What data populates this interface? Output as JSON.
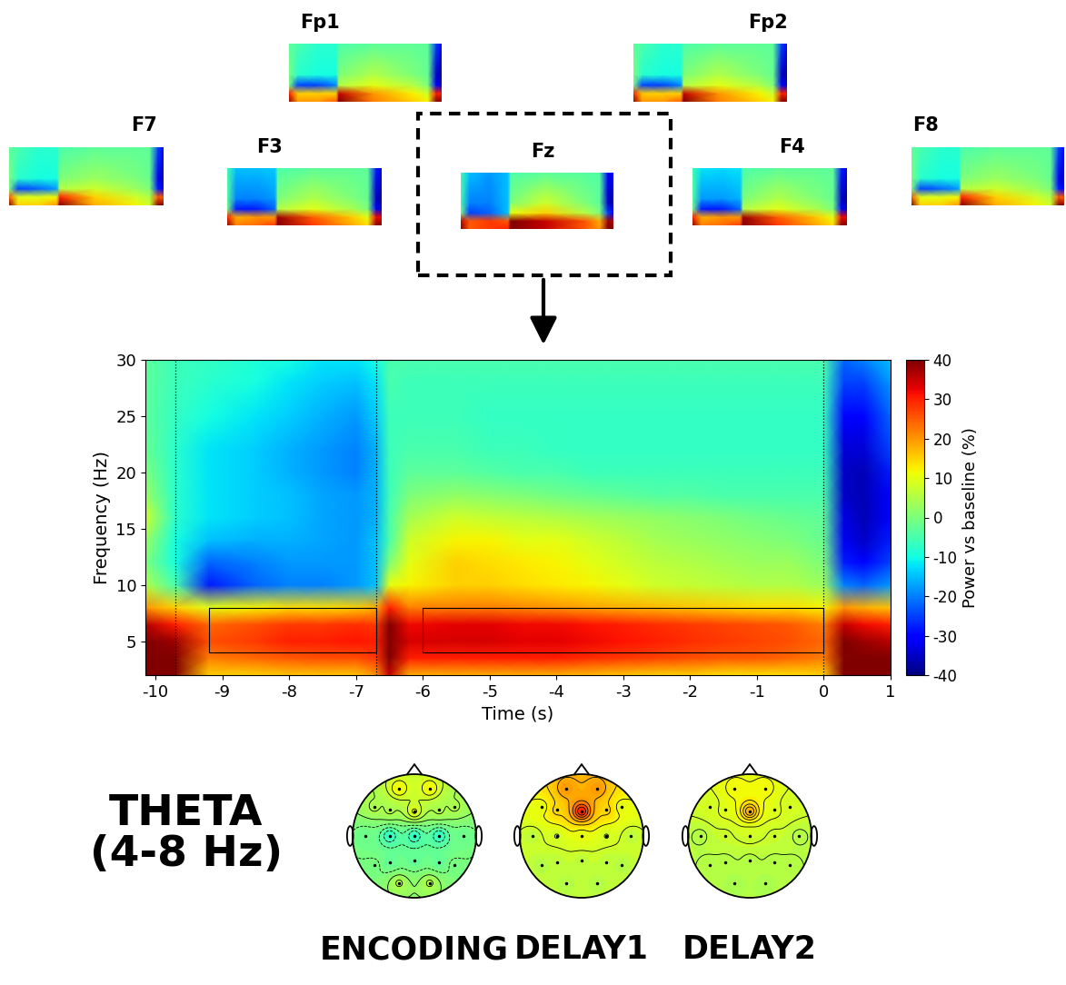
{
  "chart_data": {
    "type": "heatmap",
    "x_label": "Time (s)",
    "y_label": "Frequency (Hz)",
    "xlim": [
      -10.15,
      1.0
    ],
    "ylim": [
      2,
      30
    ],
    "xticks": [
      -10,
      -9,
      -8,
      -7,
      -6,
      -5,
      -4,
      -3,
      -2,
      -1,
      0,
      1
    ],
    "yticks": [
      5,
      10,
      15,
      20,
      25,
      30
    ],
    "events": [
      -9.7,
      -6.7,
      0
    ],
    "windows": [
      {
        "x": [
          -9.2,
          -6.7
        ],
        "y": [
          4,
          8
        ]
      },
      {
        "x": [
          -6.0,
          0.0
        ],
        "y": [
          4,
          8
        ]
      }
    ],
    "colorbar": {
      "label": "Power vs baseline (%)",
      "range": [
        -40,
        40
      ],
      "ticks": [
        -40,
        -30,
        -20,
        -10,
        0,
        10,
        20,
        30,
        40
      ]
    },
    "x": [
      -10.15,
      -9.7,
      -9.2,
      -8.5,
      -8,
      -7.5,
      -7,
      -6.7,
      -6.5,
      -6.2,
      -5.5,
      -5,
      -4.5,
      -4,
      -3.5,
      -3,
      -2.5,
      -2,
      -1.5,
      -1,
      -0.5,
      0,
      0.3,
      0.6,
      1.0
    ],
    "y": [
      2,
      3.5,
      5,
      6.5,
      8,
      10,
      12,
      14,
      16,
      18,
      20,
      22,
      25,
      28,
      30
    ],
    "cells": [
      [
        40,
        40,
        15,
        15,
        16,
        16,
        16,
        20,
        35,
        18,
        18,
        18,
        18,
        18,
        17,
        16,
        15,
        15,
        14,
        14,
        14,
        15,
        40,
        40,
        40
      ],
      [
        40,
        40,
        22,
        24,
        25,
        26,
        26,
        28,
        40,
        30,
        30,
        30,
        30,
        30,
        29,
        28,
        27,
        26,
        25,
        25,
        24,
        22,
        40,
        40,
        40
      ],
      [
        40,
        38,
        26,
        28,
        30,
        30,
        31,
        30,
        40,
        34,
        34,
        34,
        33,
        33,
        32,
        31,
        30,
        29,
        28,
        27,
        26,
        24,
        40,
        38,
        36
      ],
      [
        36,
        30,
        24,
        26,
        28,
        28,
        29,
        28,
        40,
        32,
        33,
        33,
        32,
        32,
        31,
        30,
        29,
        28,
        27,
        26,
        25,
        22,
        35,
        32,
        30
      ],
      [
        20,
        15,
        10,
        12,
        14,
        14,
        15,
        18,
        30,
        22,
        22,
        22,
        21,
        20,
        19,
        18,
        17,
        16,
        15,
        14,
        14,
        12,
        20,
        18,
        16
      ],
      [
        5,
        -5,
        -28,
        -22,
        -20,
        -20,
        -18,
        -15,
        10,
        12,
        15,
        15,
        14,
        13,
        12,
        10,
        8,
        7,
        6,
        5,
        5,
        3,
        -20,
        -22,
        -18
      ],
      [
        0,
        -10,
        -22,
        -20,
        -18,
        -18,
        -18,
        -15,
        0,
        10,
        15,
        14,
        13,
        12,
        10,
        8,
        6,
        5,
        4,
        3,
        3,
        0,
        -28,
        -30,
        -25
      ],
      [
        3,
        -10,
        -15,
        -16,
        -16,
        -17,
        -18,
        -15,
        -5,
        8,
        12,
        12,
        10,
        10,
        8,
        6,
        4,
        3,
        2,
        1,
        0,
        -2,
        -32,
        -35,
        -28
      ],
      [
        8,
        -8,
        -12,
        -14,
        -15,
        -17,
        -18,
        -16,
        -5,
        4,
        8,
        7,
        6,
        5,
        4,
        3,
        2,
        1,
        0,
        -1,
        -2,
        -3,
        -33,
        -36,
        -30
      ],
      [
        3,
        -8,
        -12,
        -14,
        -15,
        -17,
        -18,
        -16,
        -6,
        0,
        2,
        1,
        0,
        -1,
        -2,
        -3,
        -4,
        -4,
        -5,
        -5,
        -5,
        -5,
        -35,
        -36,
        -30
      ],
      [
        0,
        -8,
        -12,
        -14,
        -16,
        -18,
        -20,
        -16,
        -6,
        -3,
        -3,
        -4,
        -5,
        -5,
        -6,
        -6,
        -6,
        -6,
        -6,
        -6,
        -6,
        -6,
        -35,
        -36,
        -28
      ],
      [
        -2,
        -8,
        -12,
        -14,
        -16,
        -18,
        -20,
        -16,
        -6,
        -5,
        -5,
        -6,
        -6,
        -7,
        -7,
        -7,
        -7,
        -7,
        -7,
        -7,
        -7,
        -7,
        -34,
        -34,
        -25
      ],
      [
        -3,
        -7,
        -10,
        -12,
        -14,
        -16,
        -18,
        -14,
        -6,
        -6,
        -6,
        -7,
        -7,
        -7,
        -7,
        -7,
        -7,
        -7,
        -7,
        -7,
        -7,
        -7,
        -30,
        -30,
        -22
      ],
      [
        -3,
        -6,
        -8,
        -10,
        -12,
        -14,
        -15,
        -12,
        -5,
        -6,
        -6,
        -6,
        -6,
        -6,
        -6,
        -6,
        -6,
        -6,
        -6,
        -6,
        -6,
        -6,
        -25,
        -25,
        -18
      ],
      [
        -3,
        -6,
        -7,
        -9,
        -10,
        -12,
        -12,
        -10,
        -5,
        -5,
        -5,
        -5,
        -5,
        -5,
        -5,
        -5,
        -5,
        -5,
        -5,
        -5,
        -5,
        -5,
        -22,
        -20,
        -15
      ]
    ]
  },
  "electrode_maps": {
    "x": [
      -10.15,
      -9.5,
      -8,
      -6.7,
      -6.5,
      -4,
      -1,
      0,
      0.6,
      1.0
    ],
    "y": [
      2,
      6,
      10,
      15,
      30
    ],
    "maps": [
      {
        "label": "Fp1",
        "cells": [
          [
            40,
            20,
            20,
            25,
            40,
            22,
            15,
            12,
            40,
            40
          ],
          [
            30,
            15,
            15,
            15,
            35,
            20,
            12,
            8,
            30,
            30
          ],
          [
            0,
            -25,
            -25,
            -20,
            5,
            10,
            5,
            0,
            -30,
            -35
          ],
          [
            0,
            -8,
            -10,
            -10,
            0,
            5,
            0,
            -2,
            -35,
            -38
          ],
          [
            -3,
            -5,
            -8,
            -8,
            -5,
            -3,
            -3,
            -3,
            -25,
            -30
          ]
        ]
      },
      {
        "label": "Fp2",
        "cells": [
          [
            40,
            20,
            20,
            25,
            40,
            22,
            15,
            12,
            40,
            40
          ],
          [
            30,
            15,
            15,
            15,
            35,
            20,
            12,
            8,
            30,
            30
          ],
          [
            0,
            -25,
            -25,
            -20,
            5,
            10,
            5,
            0,
            -30,
            -35
          ],
          [
            0,
            -8,
            -10,
            -10,
            0,
            5,
            0,
            -2,
            -35,
            -38
          ],
          [
            -3,
            -5,
            -8,
            -8,
            -5,
            -3,
            -3,
            -3,
            -25,
            -30
          ]
        ]
      },
      {
        "label": "F7",
        "cells": [
          [
            40,
            15,
            15,
            20,
            40,
            18,
            12,
            8,
            40,
            40
          ],
          [
            25,
            10,
            10,
            12,
            30,
            15,
            8,
            5,
            25,
            25
          ],
          [
            0,
            -25,
            -22,
            -18,
            5,
            8,
            3,
            0,
            -28,
            -32
          ],
          [
            0,
            -8,
            -10,
            -10,
            0,
            3,
            0,
            -2,
            -32,
            -36
          ],
          [
            -3,
            -5,
            -8,
            -8,
            -5,
            -3,
            -3,
            -3,
            -25,
            -30
          ]
        ]
      },
      {
        "label": "F3",
        "cells": [
          [
            40,
            22,
            24,
            28,
            40,
            28,
            18,
            14,
            40,
            40
          ],
          [
            30,
            18,
            20,
            20,
            38,
            25,
            15,
            10,
            32,
            32
          ],
          [
            0,
            -28,
            -28,
            -22,
            5,
            10,
            4,
            0,
            -30,
            -35
          ],
          [
            -3,
            -20,
            -20,
            -18,
            0,
            5,
            0,
            -2,
            -35,
            -38
          ],
          [
            -5,
            -15,
            -15,
            -14,
            -5,
            -3,
            -3,
            -3,
            -28,
            -32
          ]
        ]
      },
      {
        "label": "Fz",
        "cells": [
          [
            40,
            25,
            28,
            30,
            40,
            35,
            25,
            20,
            40,
            40
          ],
          [
            35,
            25,
            28,
            25,
            40,
            35,
            25,
            18,
            38,
            36
          ],
          [
            0,
            -25,
            -22,
            -15,
            10,
            15,
            5,
            0,
            -25,
            -30
          ],
          [
            -5,
            -20,
            -20,
            -15,
            0,
            8,
            0,
            -3,
            -35,
            -38
          ],
          [
            -5,
            -15,
            -18,
            -15,
            -5,
            -3,
            -4,
            -4,
            -30,
            -32
          ]
        ]
      },
      {
        "label": "F4",
        "cells": [
          [
            40,
            22,
            24,
            28,
            40,
            28,
            18,
            14,
            40,
            40
          ],
          [
            30,
            18,
            20,
            20,
            38,
            25,
            15,
            10,
            32,
            32
          ],
          [
            0,
            -28,
            -28,
            -22,
            5,
            10,
            4,
            0,
            -30,
            -35
          ],
          [
            -3,
            -18,
            -18,
            -16,
            0,
            5,
            0,
            -2,
            -35,
            -38
          ],
          [
            -5,
            -12,
            -13,
            -12,
            -5,
            -3,
            -3,
            -3,
            -28,
            -32
          ]
        ]
      },
      {
        "label": "F8",
        "cells": [
          [
            40,
            15,
            15,
            20,
            40,
            18,
            12,
            8,
            40,
            40
          ],
          [
            25,
            10,
            10,
            12,
            30,
            15,
            8,
            5,
            25,
            25
          ],
          [
            0,
            -25,
            -22,
            -18,
            5,
            8,
            3,
            0,
            -28,
            -32
          ],
          [
            0,
            -8,
            -10,
            -10,
            0,
            3,
            0,
            -2,
            -32,
            -36
          ],
          [
            -3,
            -5,
            -8,
            -8,
            -5,
            -3,
            -3,
            -3,
            -25,
            -30
          ]
        ]
      }
    ]
  },
  "topography": {
    "band_lines": [
      "THETA",
      "(4-8 Hz)"
    ],
    "maps": [
      {
        "label": "ENCODING",
        "values": [
          12,
          12,
          5,
          5,
          10,
          5,
          5,
          -2,
          -8,
          -8,
          -8,
          -2,
          0,
          -3,
          -3,
          -3,
          0,
          5,
          5
        ]
      },
      {
        "label": "DELAY1",
        "values": [
          20,
          20,
          10,
          15,
          30,
          15,
          10,
          6,
          8,
          10,
          8,
          6,
          5,
          6,
          6,
          6,
          5,
          5,
          5
        ]
      },
      {
        "label": "DELAY2",
        "values": [
          12,
          12,
          8,
          10,
          18,
          10,
          8,
          5,
          7,
          8,
          7,
          5,
          5,
          5,
          5,
          5,
          5,
          4,
          4
        ]
      }
    ]
  }
}
